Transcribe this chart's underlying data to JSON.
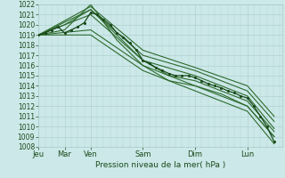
{
  "ylabel": "Pression niveau de la mer( hPa )",
  "ylim": [
    1008,
    1022
  ],
  "yticks": [
    1008,
    1009,
    1010,
    1011,
    1012,
    1013,
    1014,
    1015,
    1016,
    1017,
    1018,
    1019,
    1020,
    1021,
    1022
  ],
  "day_labels": [
    "Jeu",
    "Mar",
    "Ven",
    "Sam",
    "Dim",
    "Lun"
  ],
  "day_positions": [
    0,
    36,
    72,
    144,
    216,
    288
  ],
  "xlim": [
    0,
    336
  ],
  "bg_color": "#cce8e8",
  "grid_color": "#aacccc",
  "line_color": "#2d6b2d",
  "line_color_dark": "#1a4a1a",
  "series": [
    [
      0,
      1019,
      36,
      1020,
      72,
      1021.5,
      108,
      1019,
      144,
      1016.5,
      180,
      1015,
      216,
      1014,
      252,
      1013.2,
      288,
      1012,
      325,
      1009
    ],
    [
      0,
      1019,
      36,
      1019.5,
      72,
      1022,
      108,
      1018.5,
      144,
      1016,
      180,
      1015,
      216,
      1014.5,
      252,
      1013.5,
      288,
      1012.5,
      325,
      1009.5
    ],
    [
      0,
      1019,
      72,
      1021,
      144,
      1016.5,
      216,
      1015,
      288,
      1013,
      325,
      1009.8
    ],
    [
      0,
      1019,
      72,
      1021.5,
      144,
      1017,
      216,
      1015.5,
      288,
      1013.5,
      325,
      1010.5
    ],
    [
      0,
      1019,
      72,
      1021.8,
      144,
      1017.5,
      216,
      1015.8,
      288,
      1014,
      325,
      1011
    ],
    [
      0,
      1019,
      72,
      1019.5,
      144,
      1016,
      180,
      1014.5,
      216,
      1014,
      252,
      1013,
      288,
      1012,
      325,
      1009
    ],
    [
      0,
      1019,
      72,
      1019,
      144,
      1015.5,
      216,
      1013.5,
      288,
      1011.5,
      325,
      1008.3
    ]
  ],
  "dotted_series": [
    [
      0,
      1019,
      9,
      1019.2,
      18,
      1019.5,
      27,
      1019.8,
      36,
      1019.2,
      45,
      1019.5,
      54,
      1019.8,
      63,
      1020.2,
      72,
      1021.2,
      81,
      1021,
      90,
      1020.5,
      99,
      1020,
      108,
      1019.2,
      117,
      1018.8,
      126,
      1018.2,
      135,
      1017.5,
      144,
      1016.5,
      153,
      1016.2,
      162,
      1015.8,
      171,
      1015.5,
      180,
      1015.2,
      189,
      1015,
      198,
      1015,
      207,
      1015,
      216,
      1014.8,
      225,
      1014.5,
      234,
      1014.2,
      243,
      1014,
      252,
      1013.8,
      261,
      1013.5,
      270,
      1013.3,
      279,
      1013,
      288,
      1012.8,
      297,
      1012,
      306,
      1011,
      315,
      1010,
      325,
      1008.5
    ]
  ]
}
